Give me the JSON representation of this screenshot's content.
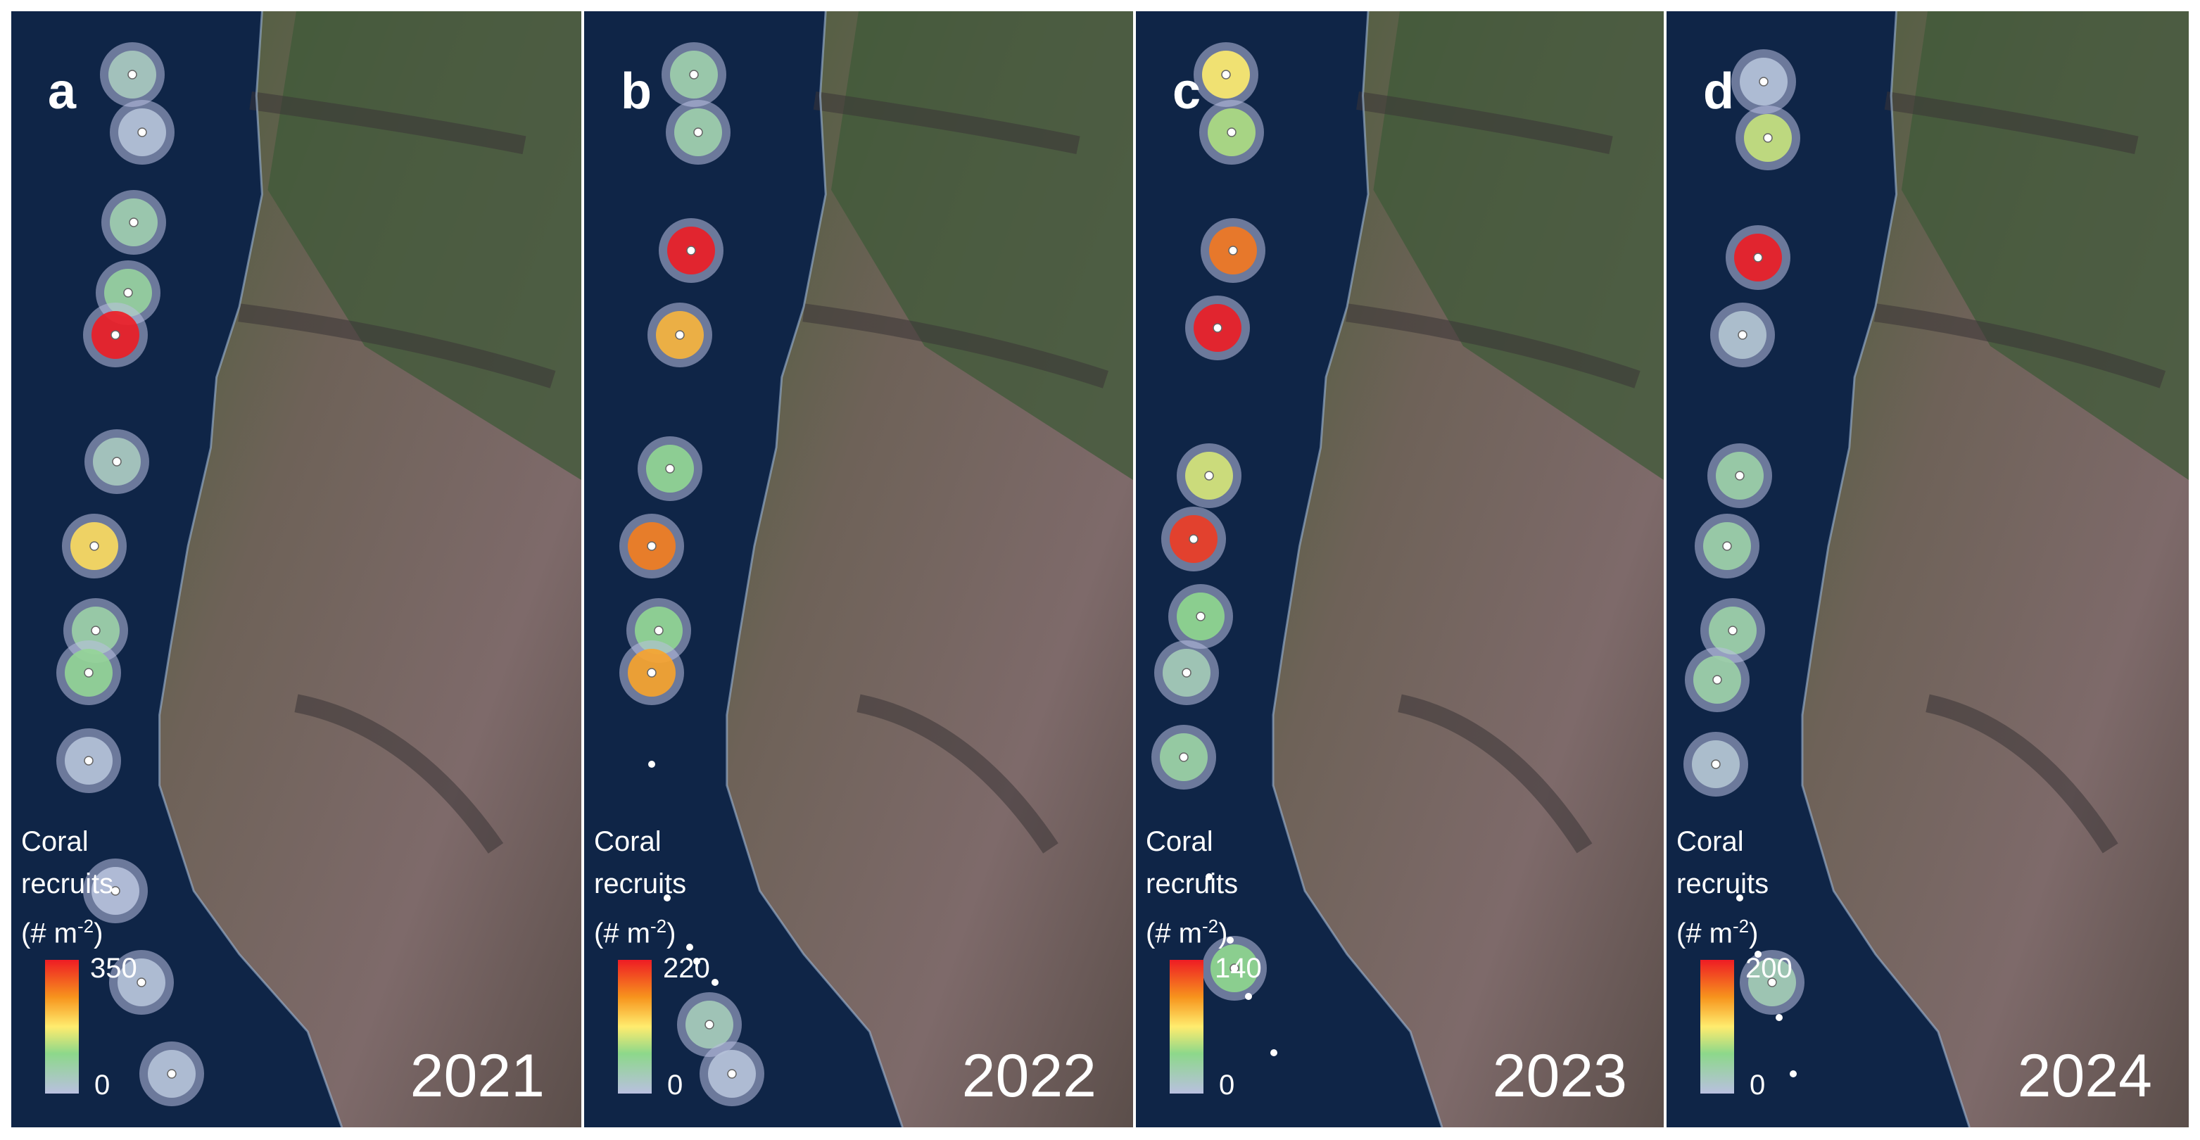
{
  "panels": [
    {
      "letter": "a",
      "year": "2021",
      "legend": {
        "title": "Coral",
        "title2": "recruits",
        "unit_prefix": "(# m",
        "unit_exp": "-2",
        "unit_suffix": ")",
        "max": "350",
        "min": "0"
      },
      "sites": [
        {
          "lat": 0.03,
          "value": 40
        },
        {
          "lat": 0.05,
          "value": 10
        },
        {
          "lat": 0.1,
          "value": 60
        },
        {
          "lat": 0.12,
          "value": 80
        },
        {
          "lat": 0.15,
          "value": 350
        },
        {
          "lat": 0.21,
          "value": 40
        },
        {
          "lat": 0.25,
          "value": 190
        },
        {
          "lat": 0.29,
          "value": 70
        },
        {
          "lat": 0.32,
          "value": 90
        },
        {
          "lat": 0.35,
          "value": 10
        },
        {
          "lat": 0.42,
          "value": 5
        },
        {
          "lat": 0.46,
          "value": 10
        },
        {
          "lat": 0.48,
          "value": 10
        }
      ]
    },
    {
      "letter": "b",
      "year": "2022",
      "legend": {
        "title": "Coral",
        "title2": "recruits",
        "unit_prefix": "(# m",
        "unit_exp": "-2",
        "unit_suffix": ")",
        "max": "220",
        "min": "0"
      },
      "sites": [
        {
          "lat": 0.03,
          "value": 40
        },
        {
          "lat": 0.05,
          "value": 40
        },
        {
          "lat": 0.11,
          "value": 220
        },
        {
          "lat": 0.14,
          "value": 140
        },
        {
          "lat": 0.21,
          "value": 60
        },
        {
          "lat": 0.24,
          "value": 170
        },
        {
          "lat": 0.27,
          "value": 60
        },
        {
          "lat": 0.3,
          "value": 150
        },
        {
          "lat": 0.46,
          "value": 30
        },
        {
          "lat": 0.48,
          "value": 5
        }
      ]
    },
    {
      "letter": "c",
      "year": "2023",
      "legend": {
        "title": "Coral",
        "title2": "recruits",
        "unit_prefix": "(# m",
        "unit_exp": "-2",
        "unit_suffix": ")",
        "max": "140",
        "min": "0"
      },
      "sites": [
        {
          "lat": 0.03,
          "value": 70
        },
        {
          "lat": 0.05,
          "value": 50
        },
        {
          "lat": 0.11,
          "value": 110
        },
        {
          "lat": 0.14,
          "value": 140
        },
        {
          "lat": 0.21,
          "value": 60
        },
        {
          "lat": 0.24,
          "value": 130
        },
        {
          "lat": 0.27,
          "value": 40
        },
        {
          "lat": 0.29,
          "value": 20
        },
        {
          "lat": 0.33,
          "value": 30
        },
        {
          "lat": 0.43,
          "value": 40
        },
        {
          "lat": 0.47,
          "value": 10
        }
      ]
    },
    {
      "letter": "d",
      "year": "2024",
      "legend": {
        "title": "Coral",
        "title2": "recruits",
        "unit_prefix": "(# m",
        "unit_exp": "-2",
        "unit_suffix": ")",
        "max": "200",
        "min": "0"
      },
      "sites": [
        {
          "lat": 0.03,
          "value": 5
        },
        {
          "lat": 0.06,
          "value": 80
        },
        {
          "lat": 0.11,
          "value": 200
        },
        {
          "lat": 0.15,
          "value": 10
        },
        {
          "lat": 0.22,
          "value": 40
        },
        {
          "lat": 0.25,
          "value": 40
        },
        {
          "lat": 0.28,
          "value": 40
        },
        {
          "lat": 0.3,
          "value": 40
        },
        {
          "lat": 0.34,
          "value": 10
        },
        {
          "lat": 0.43,
          "value": 30
        }
      ]
    }
  ],
  "colors": {
    "ocean": "#0f2547",
    "lava": "#8a6e6e",
    "vegetation": "#3f5a38",
    "scale_high": "#ee1c24",
    "scale_mid": "#ffec6e",
    "scale_low": "#b9c0e0"
  }
}
